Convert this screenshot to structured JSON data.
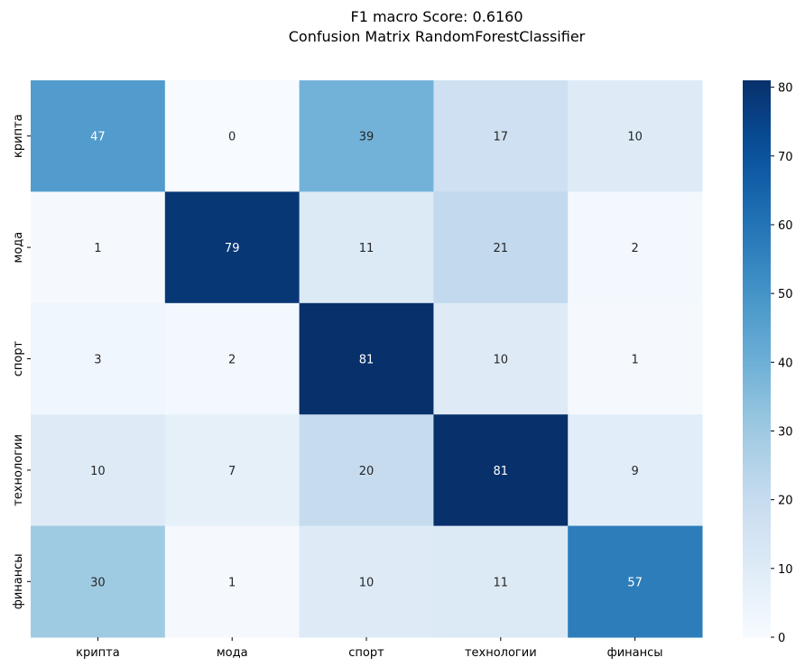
{
  "chart_data": {
    "type": "heatmap",
    "title": "F1 macro Score: 0.6160",
    "subtitle": "Confusion Matrix RandomForestClassifier",
    "row_labels": [
      "крипта",
      "мода",
      "спорт",
      "технологии",
      "финансы"
    ],
    "col_labels": [
      "крипта",
      "мода",
      "спорт",
      "технологии",
      "финансы"
    ],
    "values": [
      [
        47,
        0,
        39,
        17,
        10
      ],
      [
        1,
        79,
        11,
        21,
        2
      ],
      [
        3,
        2,
        81,
        10,
        1
      ],
      [
        10,
        7,
        20,
        81,
        9
      ],
      [
        30,
        1,
        10,
        11,
        57
      ]
    ],
    "colormap": "Blues",
    "vmin": 0,
    "vmax": 81,
    "colorbar_ticks": [
      0,
      10,
      20,
      30,
      40,
      50,
      60,
      70,
      80
    ],
    "annotations": true,
    "grid": false
  }
}
